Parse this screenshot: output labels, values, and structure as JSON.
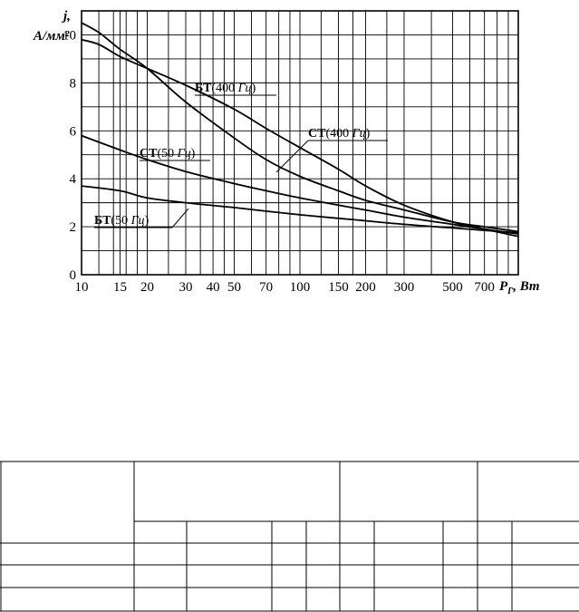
{
  "chart_data": {
    "type": "line",
    "ylabel_line1": "j,",
    "ylabel_line2": "А/мм²",
    "xlabel": "P",
    "xlabel_sub": "Г",
    "xlabel_unit": ", Вт",
    "x_scale": "log",
    "xlim": [
      10,
      1000
    ],
    "ylim": [
      0,
      11
    ],
    "y_ticks": [
      0,
      2,
      4,
      6,
      8,
      10
    ],
    "x_tick_labels": [
      10,
      15,
      20,
      30,
      40,
      50,
      70,
      100,
      150,
      200,
      300,
      500,
      700
    ],
    "grid": true,
    "series": [
      {
        "name": "БТ(400 Гц)",
        "name_main": "БТ",
        "name_freq": "400",
        "name_unit": "Гц",
        "x": [
          10,
          12,
          15,
          20,
          30,
          50,
          70,
          100,
          150,
          200,
          300,
          500,
          700,
          1000
        ],
        "y": [
          9.8,
          9.6,
          9.1,
          8.6,
          7.9,
          6.9,
          6.1,
          5.3,
          4.4,
          3.7,
          2.9,
          2.2,
          1.9,
          1.6
        ]
      },
      {
        "name": "СТ(400 Гц)",
        "name_main": "СТ",
        "name_freq": "400",
        "name_unit": "Гц",
        "x": [
          10,
          12,
          15,
          20,
          30,
          50,
          70,
          100,
          150,
          200,
          300,
          500,
          700,
          1000
        ],
        "y": [
          10.5,
          10.1,
          9.4,
          8.6,
          7.2,
          5.7,
          4.8,
          4.1,
          3.5,
          3.1,
          2.7,
          2.2,
          2.0,
          1.8
        ]
      },
      {
        "name": "СТ(50 Гц)",
        "name_main": "СТ",
        "name_freq": "50",
        "name_unit": "Гц",
        "x": [
          10,
          15,
          20,
          30,
          50,
          70,
          100,
          150,
          200,
          300,
          500,
          700,
          1000
        ],
        "y": [
          5.8,
          5.2,
          4.8,
          4.3,
          3.8,
          3.5,
          3.2,
          2.9,
          2.7,
          2.4,
          2.1,
          1.9,
          1.7
        ]
      },
      {
        "name": "БТ(50 Гц)",
        "name_main": "БТ",
        "name_freq": "50",
        "name_unit": "Гц",
        "x": [
          10,
          15,
          20,
          30,
          50,
          70,
          100,
          150,
          200,
          300,
          500,
          700,
          1000
        ],
        "y": [
          3.7,
          3.5,
          3.2,
          3.0,
          2.8,
          2.65,
          2.5,
          2.35,
          2.25,
          2.1,
          1.95,
          1.85,
          1.75
        ]
      }
    ]
  }
}
